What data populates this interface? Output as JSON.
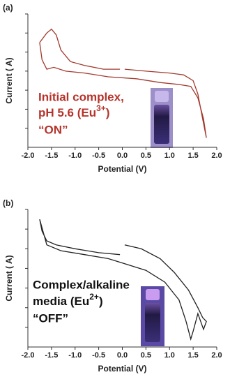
{
  "chart_data": [
    {
      "type": "line",
      "panel_label": "(a)",
      "x_label": "Potential (V)",
      "y_label": "Current ( A)",
      "annotation": [
        "Initial complex,",
        "pH 5.6 (Eu",
        "3+",
        ")",
        "“ON”"
      ],
      "annotation_color": "#b5332b",
      "color": "#a23a2e",
      "x": [
        -1.75,
        -1.6,
        -1.5,
        -1.4,
        -1.3,
        -1.1,
        -0.8,
        -0.4,
        -0.05,
        null,
        0.05,
        0.5,
        1.0,
        1.3,
        1.5,
        1.6,
        1.7,
        1.78,
        1.72,
        1.6,
        1.45,
        1.2,
        0.8,
        0.3,
        -0.3,
        -0.8,
        -1.2,
        -1.45,
        -1.6,
        -1.7,
        -1.75
      ],
      "values": [
        5.5,
        6.0,
        6.2,
        5.9,
        5.1,
        4.5,
        4.3,
        4.1,
        4.1,
        null,
        4.1,
        4.0,
        3.9,
        3.8,
        3.5,
        2.8,
        1.5,
        0.5,
        1.5,
        2.6,
        3.2,
        3.3,
        3.4,
        3.6,
        3.7,
        3.9,
        4.0,
        4.2,
        4.1,
        4.6,
        5.5
      ],
      "xlim": [
        -2,
        2
      ],
      "xticks": [
        {
          "value": -2,
          "label": "-2.0"
        },
        -1.5,
        {
          "value": -1,
          "label": "-1.0"
        },
        -0.5,
        {
          "value": 0,
          "label": "0.0"
        },
        0.5,
        {
          "value": 1,
          "label": "1.0"
        },
        1.5,
        {
          "value": 2,
          "label": "2.0"
        }
      ],
      "ylim": [
        0,
        7
      ],
      "yticks": [
        1,
        2,
        3,
        4,
        5,
        6,
        7
      ]
    },
    {
      "type": "line",
      "panel_label": "(b)",
      "x_label": "Potential (V)",
      "y_label": "Current ( A)",
      "annotation": [
        "Complex/alkaline",
        "media (Eu",
        "2+",
        ")",
        "“OFF”"
      ],
      "annotation_color": "#111111",
      "color": "#222222",
      "x": [
        -1.75,
        -1.7,
        -1.6,
        -1.4,
        -1.0,
        -0.5,
        -0.05,
        null,
        0.05,
        0.4,
        0.8,
        1.1,
        1.4,
        1.6,
        1.7,
        1.78,
        1.72,
        1.6,
        1.5,
        1.45,
        1.35,
        1.2,
        0.9,
        0.5,
        0.1,
        -0.3,
        -0.8,
        -1.3,
        -1.6,
        -1.75
      ],
      "values": [
        6.5,
        5.9,
        5.4,
        5.2,
        5.0,
        4.8,
        4.7,
        null,
        5.2,
        5.0,
        4.5,
        3.8,
        2.9,
        2.0,
        1.5,
        1.3,
        0.9,
        1.7,
        0.8,
        0.4,
        1.3,
        2.4,
        3.3,
        3.9,
        4.2,
        4.5,
        4.7,
        4.9,
        5.2,
        6.5
      ],
      "xlim": [
        -2,
        2
      ],
      "xticks": [
        {
          "value": -2,
          "label": "-2.0"
        },
        -1.5,
        {
          "value": -1,
          "label": "-1.0"
        },
        -0.5,
        {
          "value": 0,
          "label": "0.0"
        },
        0.5,
        {
          "value": 1,
          "label": "1.0"
        },
        1.5,
        {
          "value": 2,
          "label": "2.0"
        }
      ],
      "ylim": [
        0,
        7
      ],
      "yticks": [
        1,
        2,
        3,
        4,
        5,
        6,
        7
      ]
    }
  ]
}
